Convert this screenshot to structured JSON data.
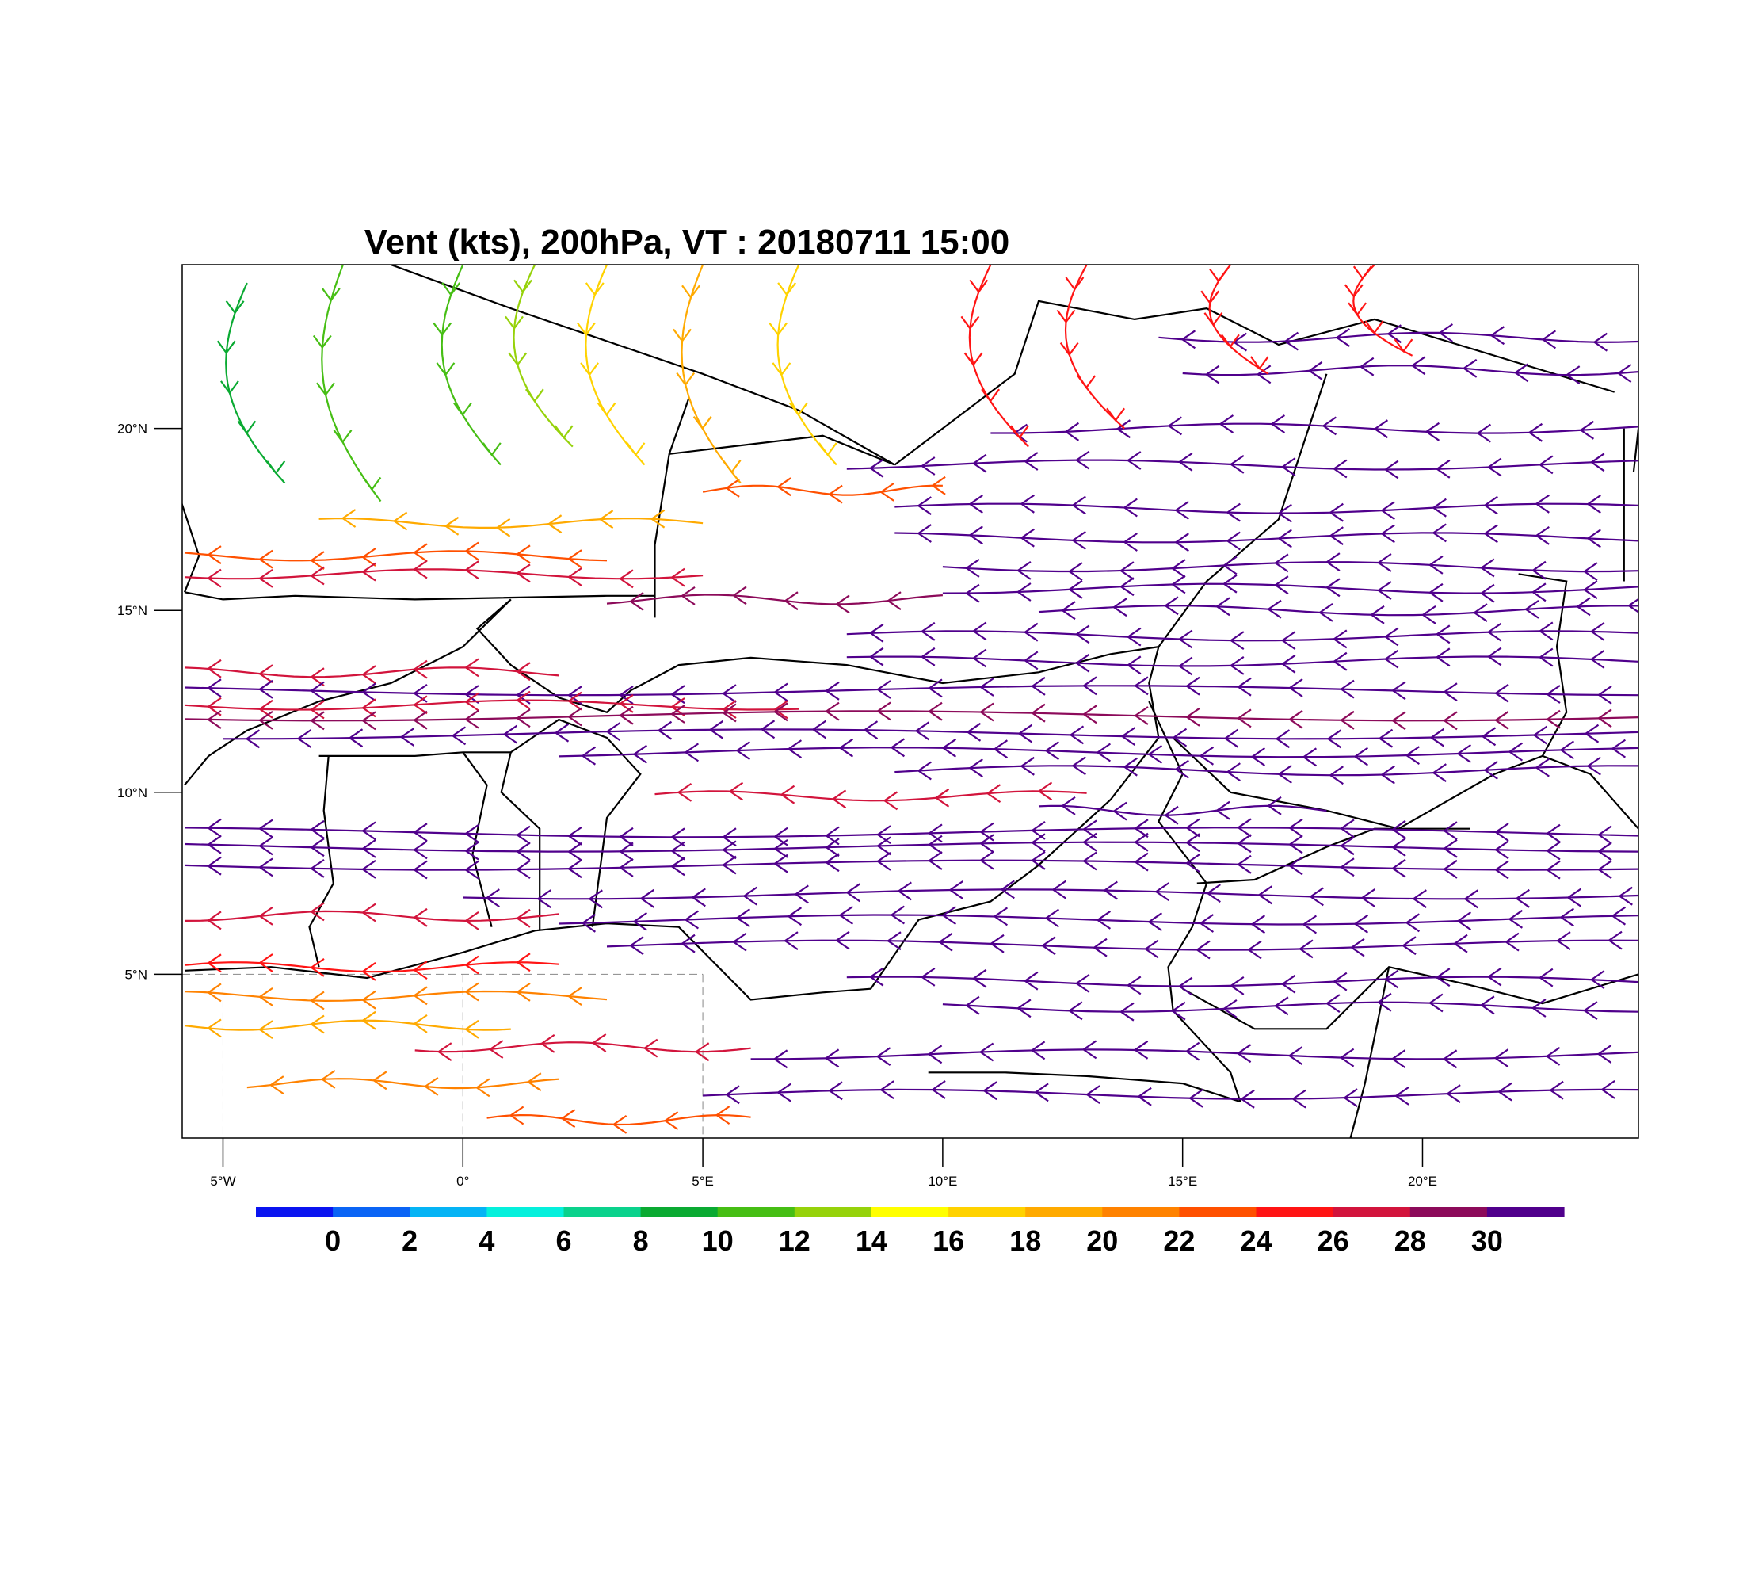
{
  "title": "Vent (kts), 200hPa, VT : 20180711  15:00",
  "map": {
    "lon_range": [
      -5.85,
      24.5
    ],
    "lat_range": [
      0.5,
      24.5
    ],
    "lon_ticks": [
      {
        "value": -5,
        "label": "5°W"
      },
      {
        "value": 0,
        "label": "0°"
      },
      {
        "value": 5,
        "label": "5°E"
      },
      {
        "value": 10,
        "label": "10°E"
      },
      {
        "value": 15,
        "label": "15°E"
      },
      {
        "value": 20,
        "label": "20°E"
      }
    ],
    "lat_ticks": [
      {
        "value": 20,
        "label": "20°N"
      },
      {
        "value": 15,
        "label": "15°N"
      },
      {
        "value": 10,
        "label": "10°N"
      },
      {
        "value": 5,
        "label": "5°N"
      }
    ],
    "boundary_color": "#000000",
    "gridline_lons": [
      -5,
      0,
      5
    ],
    "gridline_lats": [
      5
    ]
  },
  "colorbar": {
    "colors": [
      "#0a14f0",
      "#0a64f5",
      "#05b4f5",
      "#05f0dc",
      "#0ad28c",
      "#0aaa32",
      "#46be14",
      "#96d20a",
      "#ffff00",
      "#ffd200",
      "#ffaa00",
      "#ff8200",
      "#ff5000",
      "#ff1414",
      "#d2143c",
      "#8c0a5a",
      "#50008c"
    ],
    "labels": [
      "0",
      "2",
      "4",
      "6",
      "8",
      "10",
      "12",
      "14",
      "16",
      "18",
      "20",
      "22",
      "24",
      "26",
      "28",
      "30"
    ]
  },
  "chart_data": {
    "type": "streamline",
    "units": "kts",
    "level": "200hPa",
    "valid_time": "20180711  15:00",
    "direction": "easterly (flow toward west)",
    "streamlines": [
      {
        "lat": 22.5,
        "lon_start": 14.5,
        "lon_end": 24.5,
        "speed": 30
      },
      {
        "lat": 21.6,
        "lon_start": 15.0,
        "lon_end": 24.5,
        "speed": 30
      },
      {
        "lat": 20.0,
        "lon_start": 11.0,
        "lon_end": 24.5,
        "speed": 30
      },
      {
        "lat": 19.0,
        "lon_start": 8.0,
        "lon_end": 24.5,
        "speed": 30
      },
      {
        "lat": 18.3,
        "lon_start": 5.0,
        "lon_end": 10.0,
        "speed": 22
      },
      {
        "lat": 17.8,
        "lon_start": 9.0,
        "lon_end": 24.5,
        "speed": 30
      },
      {
        "lat": 17.4,
        "lon_start": -3.0,
        "lon_end": 5.0,
        "speed": 18
      },
      {
        "lat": 17.0,
        "lon_start": 9.0,
        "lon_end": 24.5,
        "speed": 30
      },
      {
        "lat": 16.5,
        "lon_start": -5.8,
        "lon_end": 3.0,
        "speed": 22
      },
      {
        "lat": 16.2,
        "lon_start": 10.0,
        "lon_end": 24.5,
        "speed": 30
      },
      {
        "lat": 16.0,
        "lon_start": -5.8,
        "lon_end": 5.0,
        "speed": 26
      },
      {
        "lat": 15.6,
        "lon_start": 10.0,
        "lon_end": 24.5,
        "speed": 30
      },
      {
        "lat": 15.3,
        "lon_start": 3.0,
        "lon_end": 10.0,
        "speed": 28
      },
      {
        "lat": 15.0,
        "lon_start": 12.0,
        "lon_end": 24.5,
        "speed": 30
      },
      {
        "lat": 14.3,
        "lon_start": 8.0,
        "lon_end": 24.5,
        "speed": 30
      },
      {
        "lat": 13.6,
        "lon_start": 8.0,
        "lon_end": 24.5,
        "speed": 30
      },
      {
        "lat": 13.3,
        "lon_start": -5.8,
        "lon_end": 2.0,
        "speed": 26
      },
      {
        "lat": 12.8,
        "lon_start": -5.8,
        "lon_end": 24.5,
        "speed": 30
      },
      {
        "lat": 12.4,
        "lon_start": -5.8,
        "lon_end": 7.0,
        "speed": 26
      },
      {
        "lat": 12.1,
        "lon_start": -5.8,
        "lon_end": 24.5,
        "speed": 28
      },
      {
        "lat": 11.6,
        "lon_start": -5.0,
        "lon_end": 24.5,
        "speed": 30
      },
      {
        "lat": 11.1,
        "lon_start": 2.0,
        "lon_end": 24.5,
        "speed": 30
      },
      {
        "lat": 10.6,
        "lon_start": 9.0,
        "lon_end": 24.5,
        "speed": 30
      },
      {
        "lat": 9.9,
        "lon_start": 4.0,
        "lon_end": 13.0,
        "speed": 26
      },
      {
        "lat": 9.5,
        "lon_start": 12.0,
        "lon_end": 18.0,
        "speed": 30
      },
      {
        "lat": 8.9,
        "lon_start": -5.8,
        "lon_end": 24.5,
        "speed": 30
      },
      {
        "lat": 8.5,
        "lon_start": -5.8,
        "lon_end": 24.5,
        "speed": 30
      },
      {
        "lat": 8.0,
        "lon_start": -5.8,
        "lon_end": 24.5,
        "speed": 30
      },
      {
        "lat": 7.2,
        "lon_start": 0.0,
        "lon_end": 24.5,
        "speed": 30
      },
      {
        "lat": 6.6,
        "lon_start": -5.8,
        "lon_end": 2.0,
        "speed": 26
      },
      {
        "lat": 6.5,
        "lon_start": 2.0,
        "lon_end": 24.5,
        "speed": 30
      },
      {
        "lat": 5.8,
        "lon_start": 3.0,
        "lon_end": 24.5,
        "speed": 30
      },
      {
        "lat": 5.2,
        "lon_start": -5.8,
        "lon_end": 2.0,
        "speed": 24
      },
      {
        "lat": 4.8,
        "lon_start": 8.0,
        "lon_end": 24.5,
        "speed": 30
      },
      {
        "lat": 4.4,
        "lon_start": -5.8,
        "lon_end": 3.0,
        "speed": 20
      },
      {
        "lat": 4.1,
        "lon_start": 10.0,
        "lon_end": 24.5,
        "speed": 30
      },
      {
        "lat": 3.6,
        "lon_start": -5.8,
        "lon_end": 1.0,
        "speed": 18
      },
      {
        "lat": 3.0,
        "lon_start": -1.0,
        "lon_end": 6.0,
        "speed": 26
      },
      {
        "lat": 2.8,
        "lon_start": 6.0,
        "lon_end": 24.5,
        "speed": 30
      },
      {
        "lat": 2.0,
        "lon_start": -4.5,
        "lon_end": 2.0,
        "speed": 20
      },
      {
        "lat": 1.7,
        "lon_start": 5.0,
        "lon_end": 24.5,
        "speed": 30
      },
      {
        "lat": 1.0,
        "lon_start": 0.5,
        "lon_end": 6.0,
        "speed": 22
      }
    ],
    "northern_curved_streamlines": [
      {
        "lon": -4.5,
        "lat_top": 24.0,
        "lat_bottom": 18.5,
        "speed": 8
      },
      {
        "lon": -2.5,
        "lat_top": 24.5,
        "lat_bottom": 18.0,
        "speed": 10
      },
      {
        "lon": 0.0,
        "lat_top": 24.5,
        "lat_bottom": 19.0,
        "speed": 11
      },
      {
        "lon": 1.5,
        "lat_top": 24.5,
        "lat_bottom": 19.5,
        "speed": 12
      },
      {
        "lon": 3.0,
        "lat_top": 24.5,
        "lat_bottom": 19.0,
        "speed": 16
      },
      {
        "lon": 5.0,
        "lat_top": 24.5,
        "lat_bottom": 18.5,
        "speed": 18
      },
      {
        "lon": 7.0,
        "lat_top": 24.5,
        "lat_bottom": 19.0,
        "speed": 17
      },
      {
        "lon": 11.0,
        "lat_top": 24.5,
        "lat_bottom": 19.5,
        "speed": 24
      },
      {
        "lon": 13.0,
        "lat_top": 24.5,
        "lat_bottom": 20.0,
        "speed": 25
      },
      {
        "lon": 16.0,
        "lat_top": 24.5,
        "lat_bottom": 21.5,
        "speed": 24
      },
      {
        "lon": 19.0,
        "lat_top": 24.5,
        "lat_bottom": 22.0,
        "speed": 24
      }
    ]
  }
}
